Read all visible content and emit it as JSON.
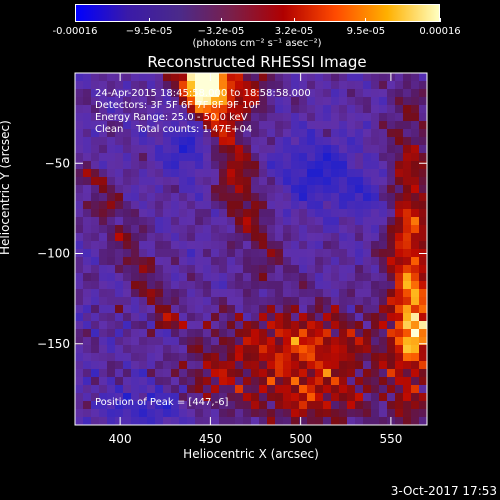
{
  "chart_data": {
    "type": "heatmap",
    "title": "Reconstructed RHESSI Image",
    "xlabel": "Heliocentric X (arcsec)",
    "ylabel": "Heliocentric Y (arcsec)",
    "xlim": [
      375,
      570
    ],
    "ylim": [
      -195,
      0
    ],
    "x_ticks": [
      400,
      450,
      500,
      550
    ],
    "y_ticks": [
      -50,
      -100,
      -150
    ],
    "colorbar": {
      "range": [
        -0.00016,
        0.00016
      ],
      "tick_values": [
        -0.00016,
        -9.5e-05,
        -3.2e-05,
        3.2e-05,
        9.5e-05,
        0.00016
      ],
      "tick_labels": [
        "-0.00016",
        "−9.5e-05",
        "−3.2e-05",
        "3.2e-05",
        "9.5e-05",
        "0.00016"
      ],
      "unit_label": "(photons cm⁻² s⁻¹ asec⁻²)",
      "colors": [
        "#0000ff",
        "#3a1aa8",
        "#4b2a8a",
        "#7a1f4a",
        "#b00000",
        "#ff4a00",
        "#ffb000",
        "#ffffc0"
      ]
    },
    "annotations": [
      "24-Apr-2015 18:45:58.000 to 18:58:58.000",
      "Detectors: 3F 5F 6F 7F 8F 9F 10F",
      "Energy Range: 25.0 - 50.0 keV",
      "Clean    Total counts: 1.47E+04"
    ],
    "peak_label": "Position of Peak = [447,-6]",
    "peak_position": [
      447,
      -6
    ]
  },
  "footer": {
    "date": "3-Oct-2017 17:53"
  }
}
